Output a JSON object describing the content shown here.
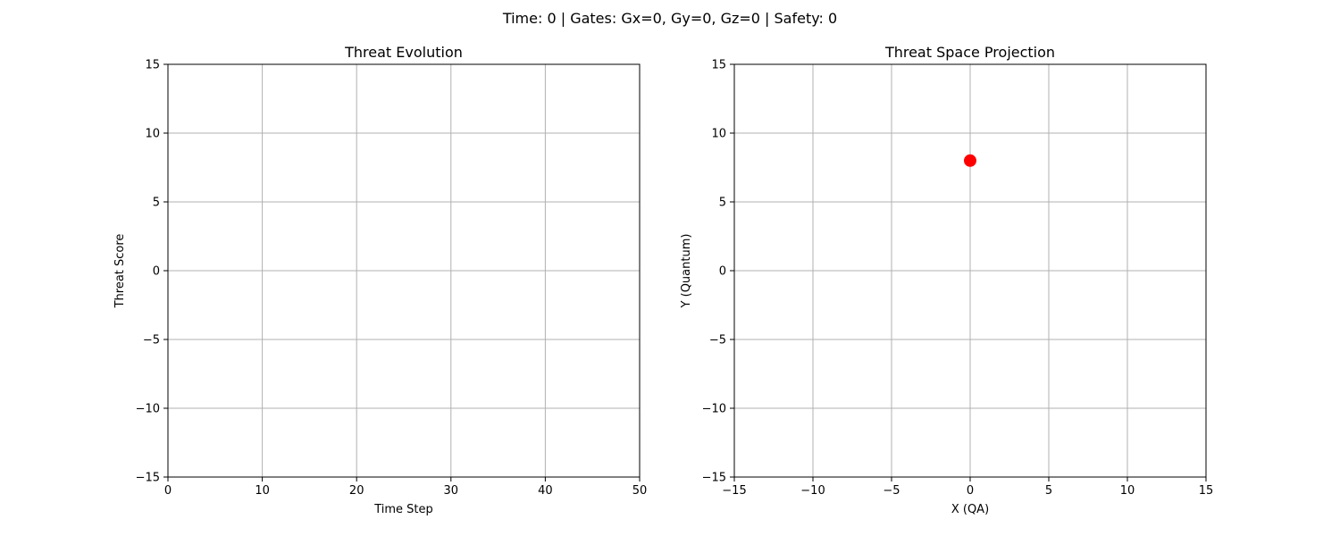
{
  "suptitle": "Time: 0 | Gates: Gx=0, Gy=0, Gz=0 | Safety: 0",
  "chart_data": [
    {
      "type": "line",
      "title": "Threat Evolution",
      "xlabel": "Time Step",
      "ylabel": "Threat Score",
      "xlim": [
        0,
        50
      ],
      "ylim": [
        -15,
        15
      ],
      "xticks": [
        0,
        10,
        20,
        30,
        40,
        50
      ],
      "yticks": [
        -15,
        -10,
        -5,
        0,
        5,
        10,
        15
      ],
      "xtick_labels": [
        "0",
        "10",
        "20",
        "30",
        "40",
        "50"
      ],
      "ytick_labels": [
        "−15",
        "−10",
        "−5",
        "0",
        "5",
        "10",
        "15"
      ],
      "grid": true,
      "series": []
    },
    {
      "type": "scatter",
      "title": "Threat Space Projection",
      "xlabel": "X (QA)",
      "ylabel": "Y (Quantum)",
      "xlim": [
        -15,
        15
      ],
      "ylim": [
        -15,
        15
      ],
      "xticks": [
        -15,
        -10,
        -5,
        0,
        5,
        10,
        15
      ],
      "yticks": [
        -15,
        -10,
        -5,
        0,
        5,
        10,
        15
      ],
      "xtick_labels": [
        "−15",
        "−10",
        "−5",
        "0",
        "5",
        "10",
        "15"
      ],
      "ytick_labels": [
        "−15",
        "−10",
        "−5",
        "0",
        "5",
        "10",
        "15"
      ],
      "grid": true,
      "series": [
        {
          "points": [
            {
              "x": 0,
              "y": 8
            }
          ],
          "color": "#ff0000"
        }
      ]
    }
  ],
  "colors": {
    "grid": "#b0b0b0",
    "axes": "#000000",
    "marker": "#ff0000"
  }
}
